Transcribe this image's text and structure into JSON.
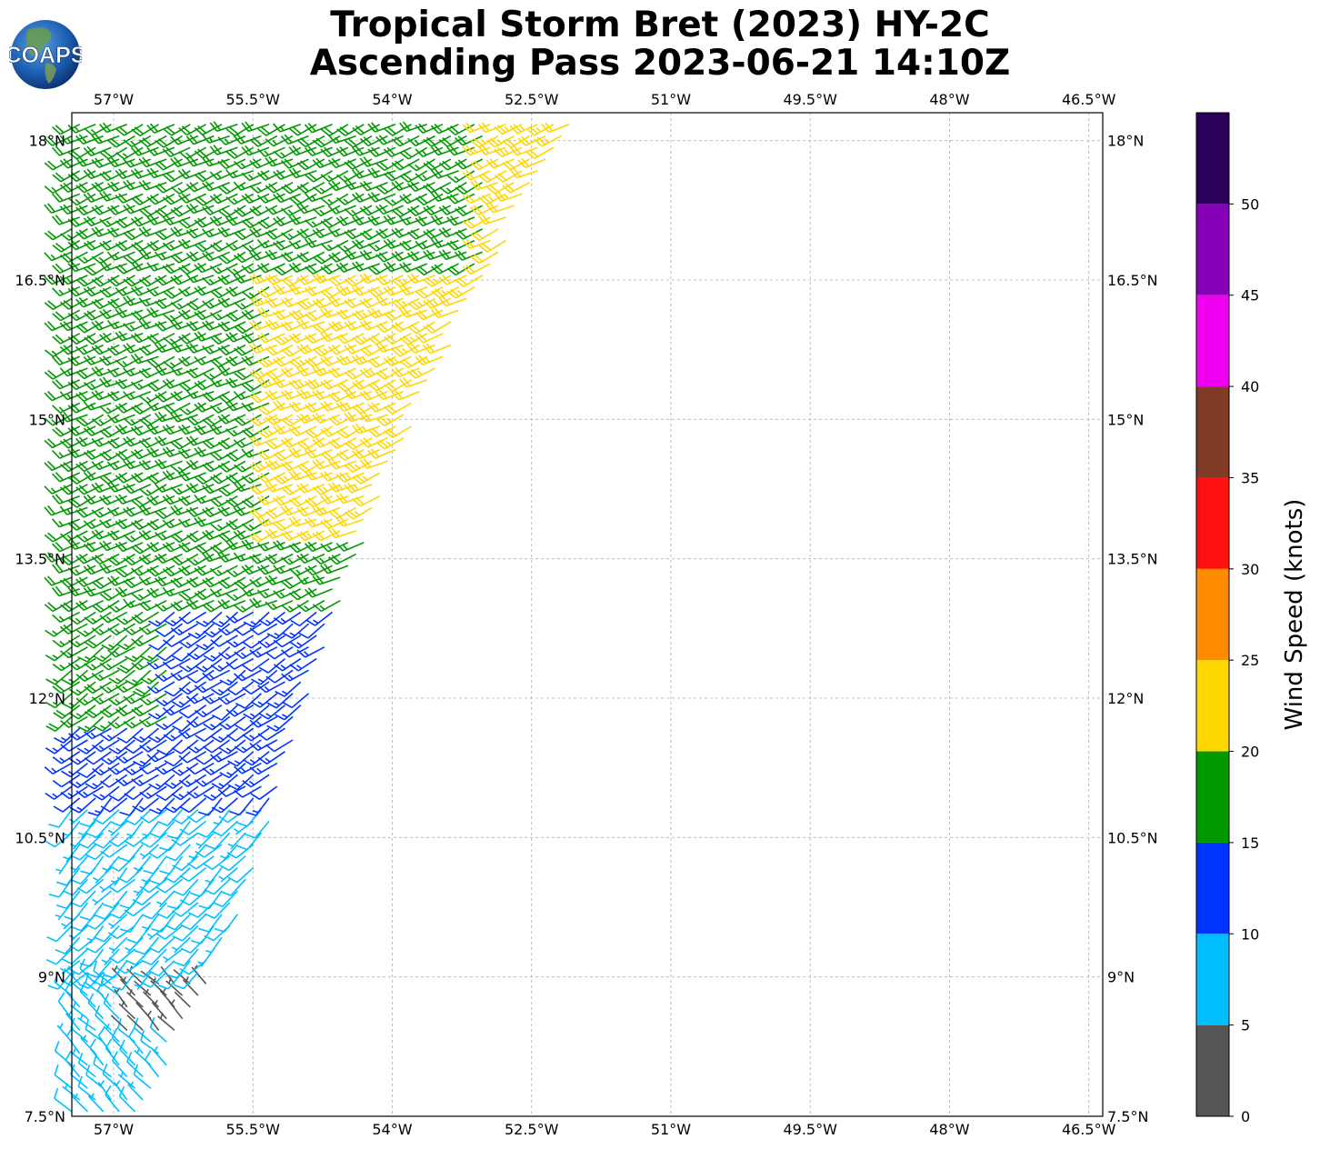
{
  "title_line1": "Tropical Storm Bret (2023) HY-2C",
  "title_line2": "Ascending Pass 2023-06-21 14:10Z",
  "logo_text": "COAPS",
  "chart_data": {
    "type": "wind_barb_map",
    "x_ticks": [
      "57°W",
      "55.5°W",
      "54°W",
      "52.5°W",
      "51°W",
      "49.5°W",
      "48°W",
      "46.5°W"
    ],
    "x_tick_values": [
      -57,
      -55.5,
      -54,
      -52.5,
      -51,
      -49.5,
      -48,
      -46.5
    ],
    "y_ticks": [
      "7.5°N",
      "9°N",
      "10.5°N",
      "12°N",
      "13.5°N",
      "15°N",
      "16.5°N",
      "18°N"
    ],
    "y_tick_values": [
      7.5,
      9,
      10.5,
      12,
      13.5,
      15,
      16.5,
      18
    ],
    "lon_range": [
      -57.45,
      -46.35
    ],
    "lat_range": [
      7.5,
      18.3
    ],
    "grid": true,
    "colorbar": {
      "label": "Wind Speed (knots)",
      "ticks": [
        0,
        5,
        10,
        15,
        20,
        25,
        30,
        35,
        40,
        45,
        50
      ],
      "range": [
        0,
        55
      ],
      "colors": [
        "#555555",
        "#00BFFF",
        "#0033FF",
        "#009900",
        "#FFD700",
        "#FF8C00",
        "#FF1111",
        "#803A25",
        "#F000F0",
        "#8600B8",
        "#2A005A"
      ]
    },
    "swath": {
      "west_edge": [
        [
          7.5,
          -57.45
        ],
        [
          18.3,
          -57.45
        ]
      ],
      "east_edge": [
        [
          7.5,
          -56.7
        ],
        [
          9.5,
          -55.7
        ],
        [
          12.0,
          -54.9
        ],
        [
          14.5,
          -54.0
        ],
        [
          16.5,
          -53.0
        ],
        [
          18.3,
          -52.0
        ]
      ],
      "regions": [
        {
          "speed_class": "5-10",
          "lat": [
            7.5,
            9.0
          ],
          "note_speed": 8
        },
        {
          "speed_class": "0-5",
          "lat": [
            8.4,
            10.0
          ],
          "lon_min": -56.9,
          "note_speed": 3
        },
        {
          "speed_class": "5-10",
          "lat": [
            9.0,
            11.0
          ],
          "note_speed": 8
        },
        {
          "speed_class": "5-10",
          "lat": [
            11.0,
            12.8
          ],
          "lon_min": -54.9,
          "note_speed": 9
        },
        {
          "speed_class": "10-15",
          "lat": [
            10.9,
            13.5
          ],
          "note_speed": 13
        },
        {
          "speed_class": "15-20",
          "lat": [
            11.8,
            13.3
          ],
          "lon_max": -56.4,
          "note_speed": 17
        },
        {
          "speed_class": "10-15",
          "lat": [
            13.2,
            14.5
          ],
          "lon_max": -55.3,
          "note_speed": 12
        },
        {
          "speed_class": "15-20",
          "lat": [
            13.0,
            18.3
          ],
          "note_speed": 18
        },
        {
          "speed_class": "20-25",
          "lat": [
            13.7,
            16.6
          ],
          "lon_min": -55.3,
          "note_speed": 22
        },
        {
          "speed_class": "20-25",
          "lat": [
            16.2,
            18.3
          ],
          "lon_min": -53.0,
          "note_speed": 22
        }
      ]
    }
  }
}
